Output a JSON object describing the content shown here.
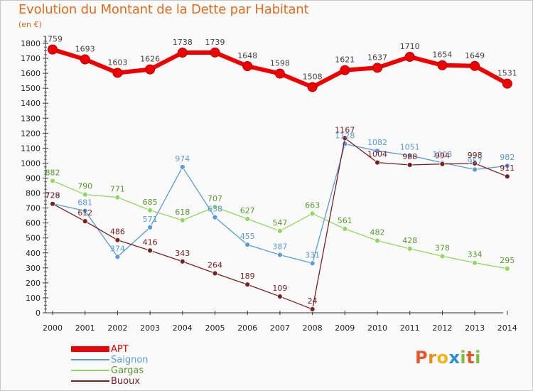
{
  "header": {
    "title": "Evolution du Montant de la Dette par Habitant",
    "unit": "(en €)"
  },
  "logo": {
    "text": "Proxiti",
    "letters": [
      {
        "char": "P",
        "color": "#e8572a"
      },
      {
        "char": "r",
        "color": "#f08c1c"
      },
      {
        "char": "o",
        "color": "#f2b51a"
      },
      {
        "char": "x",
        "color": "#2a8fd6"
      },
      {
        "char": "i",
        "color": "#7cbf3a"
      },
      {
        "char": "t",
        "color": "#e8572a"
      },
      {
        "char": "i",
        "color": "#7cbf3a"
      }
    ]
  },
  "chart_data": {
    "type": "line",
    "x": [
      "2000",
      "2001",
      "2002",
      "2003",
      "2004",
      "2005",
      "2006",
      "2007",
      "2008",
      "2009",
      "2010",
      "2011",
      "2012",
      "2013",
      "2014"
    ],
    "ylim": [
      0,
      1800
    ],
    "yticks": [
      0,
      100,
      200,
      300,
      400,
      500,
      600,
      700,
      800,
      900,
      1000,
      1100,
      1200,
      1300,
      1400,
      1500,
      1600,
      1700,
      1800
    ],
    "grid": false,
    "legend_position": "bottom-left",
    "series": [
      {
        "name": "APT",
        "color": "#ee0000",
        "label_color": "#444444",
        "values": [
          1759,
          1693,
          1603,
          1626,
          1738,
          1739,
          1648,
          1598,
          1508,
          1621,
          1637,
          1710,
          1654,
          1649,
          1531
        ]
      },
      {
        "name": "Saignon",
        "color": "#5b9bd5",
        "label_color": "#5b9bd5",
        "values": [
          729,
          681,
          374,
          571,
          974,
          638,
          455,
          387,
          331,
          1128,
          1082,
          1051,
          1003,
          957,
          982
        ]
      },
      {
        "name": "Gargas",
        "color": "#90d860",
        "label_color": "#5a9a30",
        "values": [
          882,
          790,
          771,
          685,
          618,
          707,
          627,
          547,
          663,
          561,
          482,
          428,
          378,
          334,
          295
        ]
      },
      {
        "name": "Buoux",
        "color": "#7a2020",
        "label_color": "#7a2020",
        "values": [
          728,
          612,
          486,
          416,
          343,
          264,
          189,
          109,
          24,
          1167,
          1004,
          988,
          994,
          998,
          911
        ]
      }
    ]
  }
}
